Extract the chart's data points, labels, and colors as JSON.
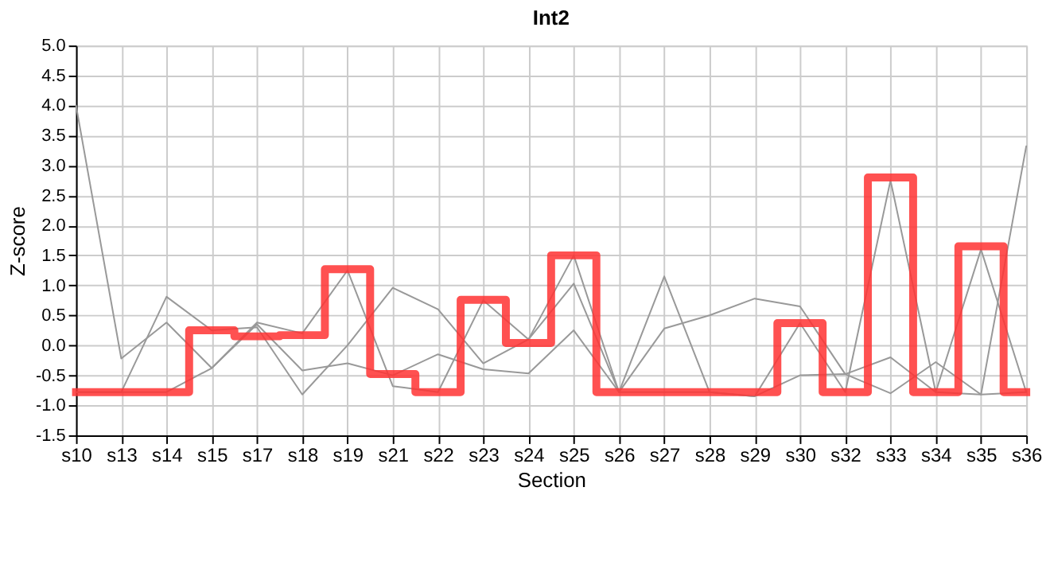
{
  "chart_data": {
    "type": "line",
    "title": "Int2",
    "xlabel": "Section",
    "ylabel": "Z-score",
    "categories": [
      "s10",
      "s13",
      "s14",
      "s15",
      "s17",
      "s18",
      "s19",
      "s21",
      "s22",
      "s23",
      "s24",
      "s25",
      "s26",
      "s27",
      "s28",
      "s29",
      "s30",
      "s32",
      "s33",
      "s34",
      "s35",
      "s36"
    ],
    "series": [
      {
        "type": "line",
        "color": "#999999",
        "values": [
          4.0,
          -0.22,
          0.38,
          -0.38,
          0.35,
          -0.42,
          -0.3,
          -0.5,
          -0.15,
          -0.4,
          -0.47,
          0.25,
          -0.78,
          0.28,
          0.5,
          0.78,
          0.65,
          -0.48,
          -0.2,
          -0.78,
          -0.82,
          3.32
        ]
      },
      {
        "type": "line",
        "color": "#999999",
        "values": [
          -0.78,
          -0.78,
          0.81,
          0.25,
          0.3,
          -0.82,
          0.0,
          0.96,
          0.6,
          -0.3,
          0.1,
          1.03,
          -0.78,
          1.15,
          -0.78,
          -0.85,
          -0.5,
          -0.48,
          -0.8,
          -0.28,
          -0.82,
          -0.78
        ]
      },
      {
        "type": "line",
        "color": "#999999",
        "values": [
          -0.78,
          -0.78,
          -0.78,
          -0.38,
          0.38,
          0.2,
          1.25,
          -0.68,
          -0.78,
          0.75,
          0.1,
          1.5,
          -0.78,
          -0.78,
          -0.78,
          -0.85,
          0.37,
          -0.78,
          2.75,
          -0.78,
          1.6,
          -0.78
        ]
      },
      {
        "type": "step",
        "color": "#ff3333",
        "values": [
          -0.78,
          -0.78,
          -0.78,
          0.25,
          0.15,
          0.17,
          1.27,
          -0.48,
          -0.78,
          0.76,
          0.04,
          1.5,
          -0.78,
          -0.78,
          -0.78,
          -0.78,
          0.37,
          -0.78,
          2.8,
          -0.78,
          1.65,
          -0.78
        ]
      }
    ],
    "ylim": [
      -1.5,
      5.0
    ],
    "yticks": [
      -1.5,
      {
        "value": -1,
        "label": "-1.0"
      },
      -0.5,
      {
        "value": 0,
        "label": "0.0"
      },
      0.5,
      {
        "value": 1,
        "label": "1.0"
      },
      1.5,
      {
        "value": 2,
        "label": "2.0"
      },
      2.5,
      {
        "value": 3,
        "label": "3.0"
      },
      3.5,
      {
        "value": 4,
        "label": "4.0"
      },
      4.5,
      {
        "value": 5,
        "label": "5.0"
      }
    ],
    "grid": true
  }
}
